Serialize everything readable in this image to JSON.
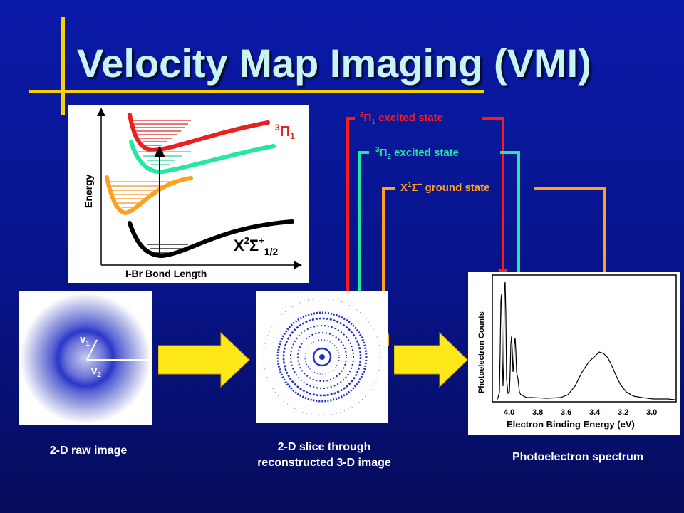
{
  "title": "Velocity Map Imaging (VMI)",
  "energy_diagram": {
    "y_axis_label": "Energy",
    "x_axis_label": "I-Br Bond Length",
    "upper_state_label": {
      "main": "3",
      "symbol": "Π",
      "sub": "1"
    },
    "ground_state_label": {
      "main": "X",
      "sup": "2",
      "symbol": "Σ",
      "sup2": "+",
      "sub": "1/2"
    }
  },
  "states": [
    {
      "prefix": "3",
      "symbol": "Π",
      "sub": "1",
      "text": " excited state",
      "color": "#ff1a1a"
    },
    {
      "prefix": "3",
      "symbol": "Π",
      "sub": "2",
      "text": " excited state",
      "color": "#22e8a0"
    },
    {
      "prefix": "X",
      "sup": "1",
      "symbol": "Σ",
      "sup2": "+",
      "text": " ground state",
      "color": "#ffa020"
    }
  ],
  "raw_image": {
    "label": "2-D raw image",
    "v1": "v",
    "v1_sub": "1",
    "v2": "v",
    "v2_sub": "2"
  },
  "slice_image": {
    "label_line1": "2-D slice through",
    "label_line2": "reconstructed 3-D image"
  },
  "spectrum": {
    "label": "Photoelectron spectrum",
    "y_axis_label": "Photoelectron Counts",
    "x_axis_label": "Electron Binding Energy (eV)",
    "tick_labels": [
      "4.0",
      "3.8",
      "3.6",
      "3.4",
      "3.2",
      "3.0"
    ]
  },
  "colors": {
    "red": "#ff1a1a",
    "green": "#22e8a0",
    "orange": "#ffa020",
    "yellow": "#f5d200",
    "arrow": "#ffe818"
  }
}
